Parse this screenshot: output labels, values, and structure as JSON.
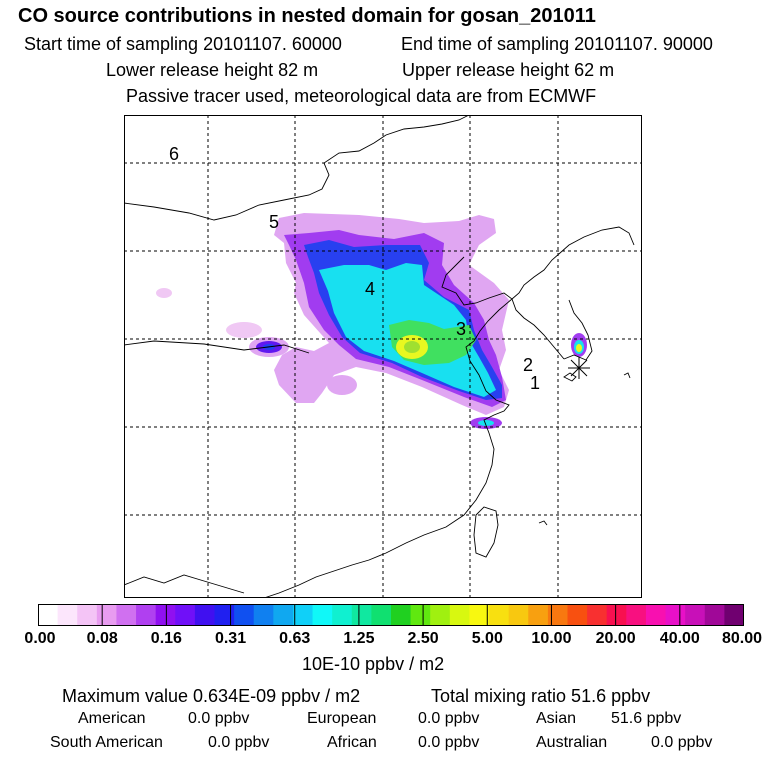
{
  "header": {
    "title": "CO  source contributions in nested domain for gosan_201011",
    "start_time": "Start time of sampling 20101107. 60000",
    "end_time": "End time of sampling 20101107. 90000",
    "lower_height": "Lower release height   82 m",
    "upper_height": "Upper release height   62 m",
    "tracer_note": "Passive tracer used, meteorological data are from ECMWF"
  },
  "chart_data": {
    "type": "heatmap",
    "title": "CO  source contributions in nested domain for gosan_201011",
    "region_labels": [
      "6",
      "5",
      "4",
      "3",
      "2",
      "1"
    ],
    "colorbar": {
      "units": "10E-10 ppbv / m2",
      "tick_labels": [
        "0.00",
        "0.08",
        "0.16",
        "0.31",
        "0.63",
        "1.25",
        "2.50",
        "5.00",
        "10.00",
        "20.00",
        "40.00",
        "80.00"
      ],
      "colors": [
        "#ffffff",
        "#fce6fc",
        "#f4c4f6",
        "#e89cf0",
        "#d070f0",
        "#b040f0",
        "#9010f0",
        "#7010f8",
        "#4010f0",
        "#2020f0",
        "#1050f0",
        "#1080f0",
        "#10a8f0",
        "#10d0f8",
        "#10f8f8",
        "#10f0d0",
        "#10e8a0",
        "#10e070",
        "#20d020",
        "#60e810",
        "#a0f010",
        "#d8f810",
        "#f8f810",
        "#f8e010",
        "#f8c810",
        "#f8a010",
        "#f87810",
        "#f85010",
        "#f83030",
        "#f81050",
        "#f81080",
        "#f810b0",
        "#e810c8",
        "#c810b8",
        "#a00898",
        "#700070"
      ]
    },
    "max_value": "0.634E-09",
    "max_value_units": "ppbv / m2",
    "total_mixing_ratio": "51.6",
    "total_mixing_ratio_units": "ppbv",
    "regional_contributions": [
      {
        "region": "American",
        "value": "0.0 ppbv"
      },
      {
        "region": "European",
        "value": "0.0 ppbv"
      },
      {
        "region": "Asian",
        "value": "51.6 ppbv"
      },
      {
        "region": "South American",
        "value": "0.0 ppbv"
      },
      {
        "region": "African",
        "value": "0.0 ppbv"
      },
      {
        "region": "Australian",
        "value": "0.0 ppbv"
      }
    ]
  },
  "summary": {
    "max_label": "Maximum value  0.634E-09 ppbv / m2",
    "total_label": "Total mixing ratio       51.6 ppbv"
  }
}
